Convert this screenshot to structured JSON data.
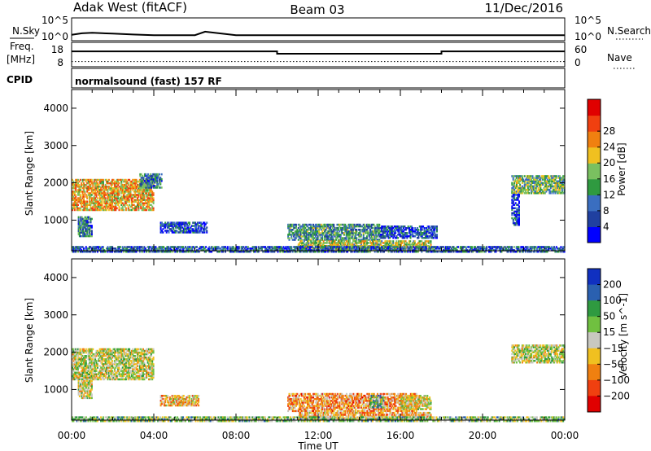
{
  "header": {
    "site": "Adak West (fitACF)",
    "beam": "Beam 03",
    "date": "11/Dec/2016"
  },
  "status_panels": {
    "nsky_label": "N.Sky",
    "nsearch_label": "N.Search",
    "nsky_ticks": [
      "10^5",
      "10^0"
    ],
    "nsearch_ticks": [
      "10^5",
      "10^0"
    ],
    "freq_label_line1": "Freq.",
    "freq_label_line2": "[MHz]",
    "freq_ticks": [
      "18",
      "8"
    ],
    "nave_label": "Nave",
    "nave_ticks": [
      "60",
      "0"
    ],
    "cpid_label": "CPID",
    "cpid_text": "normalsound (fast) 157 RF"
  },
  "chart_data": [
    {
      "type": "line",
      "title": "",
      "ylabel": "N.Sky / N.Search",
      "xlim": [
        0,
        24
      ],
      "note": "Noise levels; N.Sky near 10^1 across the day with a spike at ~06:30",
      "series": [
        {
          "name": "N.Sky",
          "x": [
            0,
            0.5,
            1,
            2,
            3,
            4,
            6,
            6.5,
            8,
            12,
            16,
            20,
            24
          ],
          "values": [
            12,
            30,
            40,
            25,
            15,
            10,
            10,
            80,
            10,
            10,
            10,
            10,
            10
          ]
        }
      ]
    },
    {
      "type": "line",
      "title": "",
      "xlim": [
        0,
        24
      ],
      "ylim_freq": [
        8,
        18
      ],
      "ylim_nave": [
        0,
        60
      ],
      "series": [
        {
          "name": "Freq.",
          "x": [
            0,
            10,
            10,
            18,
            18,
            24
          ],
          "values": [
            14.5,
            14.5,
            13.4,
            13.4,
            14.5,
            14.5
          ]
        },
        {
          "name": "Nave",
          "x": [
            0,
            24
          ],
          "values": [
            10,
            10
          ]
        }
      ]
    },
    {
      "type": "heatmap",
      "title": "",
      "xlabel": "",
      "ylabel": "Slant Range [km]",
      "xlim": [
        0,
        24
      ],
      "ylim": [
        180,
        4500
      ],
      "yticks": [
        "1000",
        "2000",
        "3000",
        "4000"
      ],
      "colorbar_label": "Power [dB]",
      "colorbar_ticks": [
        "4",
        "8",
        "12",
        "16",
        "20",
        "24",
        "28"
      ],
      "colors": [
        "#0000ff",
        "#2040a0",
        "#3a6ec0",
        "#2f9a40",
        "#7ac060",
        "#f0c020",
        "#f08010",
        "#f04010",
        "#e00000"
      ],
      "blobs": [
        {
          "t0": 0.0,
          "t1": 4.0,
          "r0": 1300,
          "r1": 2150,
          "level": 0.65
        },
        {
          "t0": 3.3,
          "t1": 4.4,
          "r0": 1900,
          "r1": 2300,
          "level": 0.3
        },
        {
          "t0": 0.3,
          "t1": 1.0,
          "r0": 600,
          "r1": 1150,
          "level": 0.3
        },
        {
          "t0": 4.3,
          "t1": 6.6,
          "r0": 700,
          "r1": 1000,
          "level": 0.2
        },
        {
          "t0": 10.5,
          "t1": 15.0,
          "r0": 500,
          "r1": 950,
          "level": 0.35
        },
        {
          "t0": 15.0,
          "t1": 17.8,
          "r0": 550,
          "r1": 900,
          "level": 0.2
        },
        {
          "t0": 11.0,
          "t1": 17.5,
          "r0": 250,
          "r1": 500,
          "level": 0.55
        },
        {
          "t0": 0.0,
          "t1": 24.0,
          "r0": 180,
          "r1": 350,
          "level": 0.25
        },
        {
          "t0": 21.4,
          "t1": 24.0,
          "r0": 1750,
          "r1": 2250,
          "level": 0.45
        },
        {
          "t0": 21.4,
          "t1": 21.8,
          "r0": 900,
          "r1": 1750,
          "level": 0.15
        }
      ]
    },
    {
      "type": "heatmap",
      "title": "",
      "xlabel": "Time UT",
      "ylabel": "Slant Range [km]",
      "xlim": [
        0,
        24
      ],
      "ylim": [
        180,
        4500
      ],
      "xticks": [
        "00:00",
        "04:00",
        "08:00",
        "12:00",
        "16:00",
        "20:00",
        "00:00"
      ],
      "yticks": [
        "1000",
        "2000",
        "3000",
        "4000"
      ],
      "colorbar_label": "Velocity [m s^-1]",
      "colorbar_ticks": [
        "200",
        "100",
        "50",
        "15",
        "-15",
        "-50",
        "-100",
        "-200"
      ],
      "colors": [
        "#1030c0",
        "#2a60b0",
        "#2f9a40",
        "#70c040",
        "#c8c8c0",
        "#f0c020",
        "#f08010",
        "#f04010",
        "#e00000"
      ],
      "blobs": [
        {
          "t0": 0.0,
          "t1": 4.0,
          "r0": 1300,
          "r1": 2150,
          "level": 0.5
        },
        {
          "t0": 0.3,
          "t1": 1.0,
          "r0": 800,
          "r1": 1300,
          "level": 0.5
        },
        {
          "t0": 4.3,
          "t1": 6.2,
          "r0": 600,
          "r1": 900,
          "level": 0.62
        },
        {
          "t0": 10.5,
          "t1": 16.8,
          "r0": 450,
          "r1": 950,
          "level": 0.68
        },
        {
          "t0": 14.5,
          "t1": 15.2,
          "r0": 550,
          "r1": 900,
          "level": 0.35
        },
        {
          "t0": 16.0,
          "t1": 17.5,
          "r0": 500,
          "r1": 900,
          "level": 0.55
        },
        {
          "t0": 11.0,
          "t1": 17.5,
          "r0": 250,
          "r1": 450,
          "level": 0.65
        },
        {
          "t0": 0.0,
          "t1": 24.0,
          "r0": 180,
          "r1": 330,
          "level": 0.4
        },
        {
          "t0": 21.4,
          "t1": 24.0,
          "r0": 1750,
          "r1": 2250,
          "level": 0.5
        }
      ]
    }
  ]
}
